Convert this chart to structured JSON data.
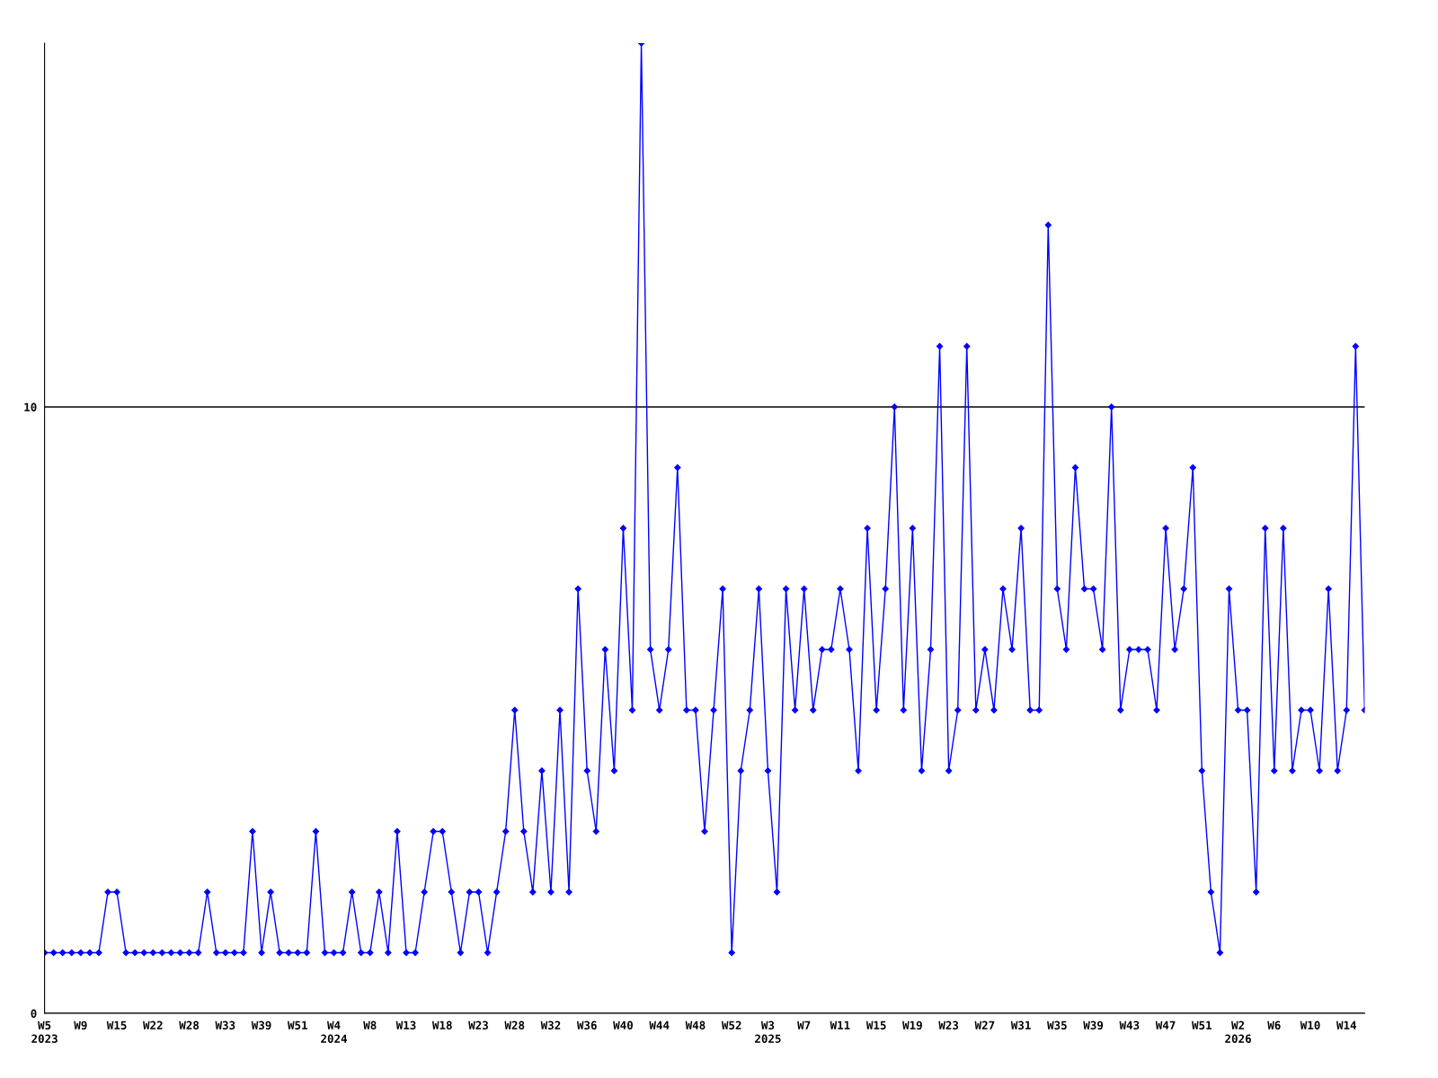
{
  "chart_data": {
    "type": "line",
    "categories": [
      "W5\n2023",
      null,
      null,
      null,
      "W9",
      null,
      null,
      null,
      "W15",
      null,
      null,
      null,
      "W22",
      null,
      null,
      null,
      "W28",
      null,
      null,
      null,
      "W33",
      null,
      null,
      null,
      "W39",
      null,
      null,
      null,
      "W51",
      null,
      null,
      null,
      "W4\n2024",
      null,
      null,
      null,
      "W8",
      null,
      null,
      null,
      "W13",
      null,
      null,
      null,
      "W18",
      null,
      null,
      null,
      "W23",
      null,
      null,
      null,
      "W28",
      null,
      null,
      null,
      "W32",
      null,
      null,
      null,
      "W36",
      null,
      null,
      null,
      "W40",
      null,
      null,
      null,
      "W44",
      null,
      null,
      null,
      "W48",
      null,
      null,
      null,
      "W52",
      null,
      null,
      null,
      "W3\n2025",
      null,
      null,
      null,
      "W7",
      null,
      null,
      null,
      "W11",
      null,
      null,
      null,
      "W15",
      null,
      null,
      null,
      "W19",
      null,
      null,
      null,
      "W23",
      null,
      null,
      null,
      "W27",
      null,
      null,
      null,
      "W31",
      null,
      null,
      null,
      "W35",
      null,
      null,
      null,
      "W39",
      null,
      null,
      null,
      "W43",
      null,
      null,
      null,
      "W47",
      null,
      null,
      null,
      "W51",
      null,
      null,
      null,
      "W2\n2026",
      null,
      null,
      null,
      "W6",
      null,
      null,
      null,
      "W10",
      null,
      null,
      null,
      "W14",
      null,
      null
    ],
    "series": [
      {
        "color": "#0000ff",
        "values": [
          1,
          1,
          1,
          1,
          1,
          1,
          1,
          2,
          2,
          1,
          1,
          1,
          1,
          1,
          1,
          1,
          1,
          1,
          2,
          1,
          1,
          1,
          1,
          3,
          1,
          2,
          1,
          1,
          1,
          1,
          3,
          1,
          1,
          1,
          2,
          1,
          1,
          2,
          1,
          3,
          1,
          1,
          2,
          3,
          3,
          2,
          1,
          2,
          2,
          1,
          2,
          3,
          5,
          3,
          2,
          4,
          2,
          5,
          2,
          7,
          4,
          3,
          6,
          4,
          8,
          5,
          16,
          6,
          5,
          6,
          9,
          5,
          5,
          3,
          5,
          7,
          1,
          4,
          5,
          7,
          4,
          2,
          7,
          5,
          7,
          5,
          6,
          6,
          7,
          6,
          4,
          8,
          5,
          7,
          10,
          5,
          8,
          4,
          6,
          11,
          4,
          5,
          11,
          5,
          6,
          5,
          7,
          6,
          8,
          5,
          5,
          13,
          7,
          6,
          9,
          7,
          7,
          6,
          10,
          5,
          6,
          6,
          6,
          5,
          8,
          6,
          7,
          9,
          4,
          2,
          1,
          7,
          5,
          5,
          2,
          8,
          4,
          8,
          4,
          5,
          5,
          4,
          7,
          4,
          5,
          11,
          5
        ]
      }
    ],
    "ylim": [
      0,
      16
    ],
    "yticks": [
      0,
      10
    ],
    "grid": "y",
    "marker": "diamond",
    "line_style": "solid"
  }
}
